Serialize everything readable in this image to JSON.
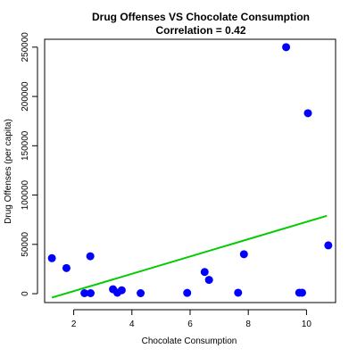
{
  "chart_data": {
    "type": "scatter",
    "title": "Drug Offenses VS Chocolate Consumption",
    "subtitle": "Correlation = 0.42",
    "xlabel": "Chocolate Consumption",
    "ylabel": "Drug Offenses (per capita)",
    "xlim": [
      1.0,
      11.0
    ],
    "ylim": [
      -9000,
      258000
    ],
    "x_ticks": [
      2,
      4,
      6,
      8,
      10
    ],
    "x_tick_labels": [
      "2",
      "4",
      "6",
      "8",
      "10"
    ],
    "y_ticks": [
      0,
      50000,
      100000,
      150000,
      200000,
      250000
    ],
    "y_tick_labels": [
      "0",
      "50000",
      "100000",
      "150000",
      "200000",
      "250000"
    ],
    "grid": false,
    "legend": "none",
    "point_color": "#0000ff",
    "trend_color": "#00cc00",
    "points": [
      {
        "x": 1.25,
        "y": 36000
      },
      {
        "x": 1.75,
        "y": 26000
      },
      {
        "x": 2.37,
        "y": 500
      },
      {
        "x": 2.57,
        "y": 38000
      },
      {
        "x": 2.58,
        "y": 500
      },
      {
        "x": 3.35,
        "y": 4500
      },
      {
        "x": 3.5,
        "y": 1000
      },
      {
        "x": 3.65,
        "y": 3500
      },
      {
        "x": 4.3,
        "y": 500
      },
      {
        "x": 5.9,
        "y": 800
      },
      {
        "x": 6.5,
        "y": 22000
      },
      {
        "x": 6.65,
        "y": 14000
      },
      {
        "x": 7.65,
        "y": 1000
      },
      {
        "x": 7.85,
        "y": 40000
      },
      {
        "x": 9.3,
        "y": 250000
      },
      {
        "x": 9.75,
        "y": 1000
      },
      {
        "x": 9.85,
        "y": 1000
      },
      {
        "x": 10.05,
        "y": 183000
      },
      {
        "x": 10.75,
        "y": 49000
      }
    ],
    "trend_line": {
      "x": [
        1.25,
        10.7
      ],
      "y": [
        -4000,
        79000
      ]
    }
  }
}
